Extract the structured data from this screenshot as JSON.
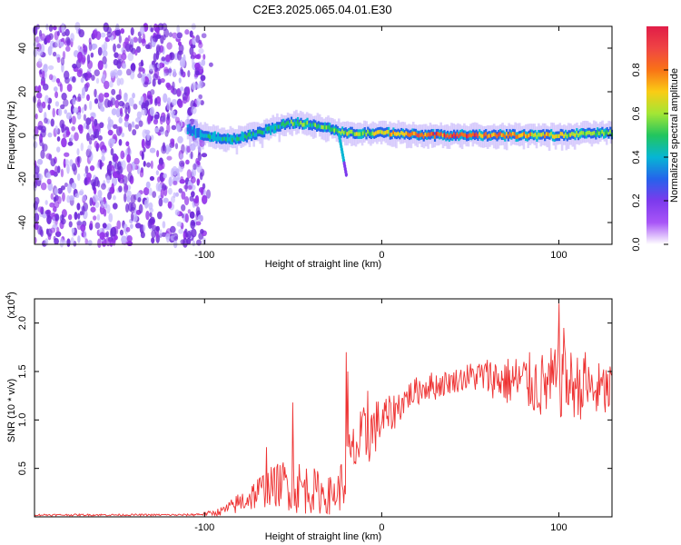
{
  "title": "C2E3.2025.065.04.01.E30",
  "chart_data": [
    {
      "type": "heatmap",
      "name": "spectrogram",
      "xlabel": "Height of straight line (km)",
      "ylabel": "Frequency (Hz)",
      "xlim": [
        -196,
        130
      ],
      "ylim": [
        -50,
        50
      ],
      "xticks": [
        -100,
        0,
        100
      ],
      "yticks": [
        40,
        20,
        0,
        -20,
        -40
      ],
      "colorbar": {
        "label": "Normalized spectral amplitude",
        "range": [
          0.0,
          1.0
        ],
        "ticks": [
          0.0,
          0.2,
          0.4,
          0.6,
          0.8
        ],
        "tick_labels": [
          "0.0",
          "0.2",
          "0.4",
          "0.6",
          "0.8"
        ],
        "colormap": [
          "#ffffff",
          "#a855f7",
          "#7c3aed",
          "#2563eb",
          "#06b6d4",
          "#22c55e",
          "#a3e635",
          "#facc15",
          "#f97316",
          "#ef4444",
          "#e11d48"
        ]
      },
      "noise_region_x": [
        -196,
        -100
      ],
      "signal_band": [
        {
          "x": -110,
          "freq": 3,
          "amp": 0.3
        },
        {
          "x": -100,
          "freq": 0,
          "amp": 0.45
        },
        {
          "x": -90,
          "freq": -2,
          "amp": 0.45
        },
        {
          "x": -80,
          "freq": -1,
          "amp": 0.5
        },
        {
          "x": -70,
          "freq": 1,
          "amp": 0.5
        },
        {
          "x": -60,
          "freq": 4,
          "amp": 0.5
        },
        {
          "x": -50,
          "freq": 6,
          "amp": 0.55
        },
        {
          "x": -40,
          "freq": 5,
          "amp": 0.55
        },
        {
          "x": -30,
          "freq": 3,
          "amp": 0.55
        },
        {
          "x": -20,
          "freq": 1,
          "amp": 0.6
        },
        {
          "x": -10,
          "freq": 1,
          "amp": 0.6
        },
        {
          "x": 0,
          "freq": 1,
          "amp": 0.7
        },
        {
          "x": 10,
          "freq": 1,
          "amp": 0.75
        },
        {
          "x": 20,
          "freq": 0,
          "amp": 0.85
        },
        {
          "x": 40,
          "freq": 0,
          "amp": 0.95
        },
        {
          "x": 60,
          "freq": 0,
          "amp": 0.85
        },
        {
          "x": 80,
          "freq": 0,
          "amp": 0.75
        },
        {
          "x": 100,
          "freq": 0,
          "amp": 0.7
        },
        {
          "x": 120,
          "freq": 1,
          "amp": 0.6
        },
        {
          "x": 130,
          "freq": 1,
          "amp": 0.6
        }
      ],
      "streak": {
        "x_start": -24,
        "x_end": -20,
        "freq_start": 0,
        "freq_end": -18
      }
    },
    {
      "type": "line",
      "name": "snr",
      "xlabel": "Height of straight line (km)",
      "ylabel": "SNR (10 * v/v)",
      "scale_label": "(x10",
      "scale_exp": "4",
      "scale_suffix": ")",
      "xlim": [
        -196,
        130
      ],
      "ylim": [
        0,
        2.25
      ],
      "xticks": [
        -100,
        0,
        100
      ],
      "yticks": [
        0.5,
        1.0,
        1.5,
        2.0
      ],
      "ytick_labels": [
        "0.5",
        "1.0",
        "1.5",
        "2.0"
      ],
      "series": [
        {
          "name": "SNR",
          "color": "#ee3333",
          "x": [
            -196,
            -150,
            -110,
            -100,
            -95,
            -90,
            -85,
            -80,
            -75,
            -70,
            -65,
            -60,
            -55,
            -50,
            -45,
            -40,
            -35,
            -30,
            -25,
            -22,
            -20,
            -18,
            -15,
            -12,
            -10,
            -5,
            0,
            5,
            10,
            15,
            20,
            25,
            30,
            40,
            50,
            60,
            70,
            80,
            90,
            100,
            110,
            120,
            130
          ],
          "mean": [
            0.02,
            0.02,
            0.02,
            0.03,
            0.04,
            0.06,
            0.1,
            0.15,
            0.2,
            0.25,
            0.3,
            0.32,
            0.35,
            0.33,
            0.3,
            0.28,
            0.25,
            0.22,
            0.25,
            0.35,
            0.45,
            0.6,
            0.7,
            0.75,
            0.8,
            0.9,
            1.0,
            1.05,
            1.15,
            1.25,
            1.3,
            1.35,
            1.35,
            1.4,
            1.45,
            1.45,
            1.4,
            1.4,
            1.35,
            1.4,
            1.35,
            1.3,
            1.3
          ],
          "spread": [
            0.01,
            0.01,
            0.01,
            0.02,
            0.03,
            0.05,
            0.08,
            0.12,
            0.15,
            0.18,
            0.2,
            0.22,
            0.25,
            0.3,
            0.28,
            0.25,
            0.22,
            0.2,
            0.2,
            0.3,
            0.35,
            0.3,
            0.3,
            0.35,
            0.35,
            0.3,
            0.25,
            0.2,
            0.18,
            0.15,
            0.15,
            0.15,
            0.15,
            0.12,
            0.15,
            0.2,
            0.25,
            0.3,
            0.35,
            0.4,
            0.35,
            0.3,
            0.3
          ],
          "peaks": [
            {
              "x": -50,
              "y": 1.18
            },
            {
              "x": -65,
              "y": 0.72
            },
            {
              "x": -20,
              "y": 1.7
            },
            {
              "x": -19,
              "y": 1.5
            },
            {
              "x": -8,
              "y": 1.3
            },
            {
              "x": 100,
              "y": 2.2
            },
            {
              "x": 103,
              "y": 1.95
            },
            {
              "x": 115,
              "y": 1.7
            }
          ]
        }
      ]
    }
  ]
}
